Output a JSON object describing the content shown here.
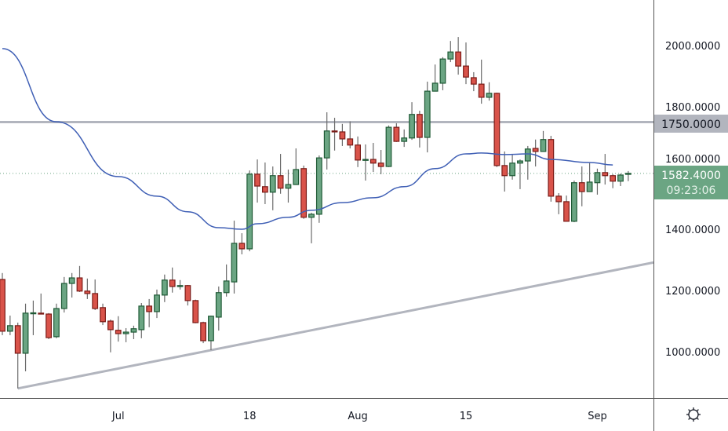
{
  "chart_data": {
    "type": "candlestick",
    "title": "",
    "xlabel": "",
    "ylabel": "",
    "ylim": [
      860,
      2150
    ],
    "grid": false,
    "y_ticks": [
      "1000.0000",
      "1200.0000",
      "1400.0000",
      "1600.0000",
      "1800.0000",
      "2000.0000"
    ],
    "x_ticks": [
      {
        "date": "Jul 1",
        "label": "Jul"
      },
      {
        "date": "Jul 18",
        "label": "18"
      },
      {
        "date": "Aug 1",
        "label": "Aug"
      },
      {
        "date": "Aug 15",
        "label": "15"
      },
      {
        "date": "Sep 1",
        "label": "Sep"
      }
    ],
    "ohlc_fields": [
      "date",
      "open",
      "high",
      "low",
      "close"
    ],
    "ohlc": [
      [
        "Jun 16",
        1236,
        1257,
        1054,
        1067
      ],
      [
        "Jun 17",
        1067,
        1118,
        1054,
        1085
      ],
      [
        "Jun 18",
        1085,
        1095,
        880,
        995
      ],
      [
        "Jun 19",
        995,
        1157,
        936,
        1126
      ],
      [
        "Jun 20",
        1126,
        1167,
        1054,
        1127
      ],
      [
        "Jun 21",
        1126,
        1190,
        1123,
        1123
      ],
      [
        "Jun 22",
        1123,
        1126,
        1041,
        1046
      ],
      [
        "Jun 23",
        1049,
        1157,
        1044,
        1141
      ],
      [
        "Jun 24",
        1141,
        1244,
        1128,
        1223
      ],
      [
        "Jun 25",
        1223,
        1257,
        1177,
        1241
      ],
      [
        "Jun 26",
        1241,
        1280,
        1195,
        1198
      ],
      [
        "Jun 27",
        1198,
        1239,
        1172,
        1190
      ],
      [
        "Jun 28",
        1190,
        1236,
        1136,
        1141
      ],
      [
        "Jun 29",
        1144,
        1157,
        1087,
        1098
      ],
      [
        "Jun 30",
        1100,
        1105,
        998,
        1072
      ],
      [
        "Jul 1",
        1070,
        1116,
        1033,
        1059
      ],
      [
        "Jul 2",
        1059,
        1077,
        1031,
        1064
      ],
      [
        "Jul 3",
        1064,
        1085,
        1041,
        1075
      ],
      [
        "Jul 4",
        1072,
        1159,
        1044,
        1149
      ],
      [
        "Jul 5",
        1149,
        1172,
        1080,
        1131
      ],
      [
        "Jul 6",
        1131,
        1203,
        1110,
        1185
      ],
      [
        "Jul 7",
        1185,
        1252,
        1162,
        1234
      ],
      [
        "Jul 8",
        1234,
        1275,
        1193,
        1213
      ],
      [
        "Jul 9",
        1213,
        1234,
        1203,
        1216
      ],
      [
        "Jul 10",
        1216,
        1218,
        1151,
        1167
      ],
      [
        "Jul 11",
        1167,
        1170,
        1093,
        1095
      ],
      [
        "Jul 12",
        1095,
        1098,
        1028,
        1036
      ],
      [
        "Jul 13",
        1036,
        1118,
        1005,
        1116
      ],
      [
        "Jul 14",
        1113,
        1213,
        1069,
        1193
      ],
      [
        "Jul 15",
        1193,
        1285,
        1180,
        1231
      ],
      [
        "Jul 16",
        1228,
        1428,
        1190,
        1354
      ],
      [
        "Jul 17",
        1354,
        1387,
        1318,
        1336
      ],
      [
        "Jul 18",
        1336,
        1592,
        1328,
        1580
      ],
      [
        "Jul 19",
        1580,
        1628,
        1487,
        1541
      ],
      [
        "Jul 20",
        1539,
        1618,
        1482,
        1521
      ],
      [
        "Jul 21",
        1521,
        1605,
        1462,
        1575
      ],
      [
        "Jul 22",
        1575,
        1646,
        1516,
        1534
      ],
      [
        "Jul 23",
        1534,
        1595,
        1487,
        1546
      ],
      [
        "Jul 24",
        1546,
        1664,
        1546,
        1595
      ],
      [
        "Jul 25",
        1598,
        1608,
        1434,
        1439
      ],
      [
        "Jul 26",
        1439,
        1454,
        1354,
        1449
      ],
      [
        "Jul 27",
        1449,
        1641,
        1421,
        1633
      ],
      [
        "Jul 28",
        1633,
        1782,
        1595,
        1721
      ],
      [
        "Jul 29",
        1721,
        1764,
        1657,
        1718
      ],
      [
        "Jul 30",
        1718,
        1744,
        1672,
        1695
      ],
      [
        "Jul 31",
        1695,
        1752,
        1664,
        1675
      ],
      [
        "Aug 1",
        1675,
        1703,
        1603,
        1626
      ],
      [
        "Aug 2",
        1626,
        1677,
        1559,
        1628
      ],
      [
        "Aug 3",
        1628,
        1682,
        1587,
        1616
      ],
      [
        "Aug 4",
        1616,
        1659,
        1580,
        1605
      ],
      [
        "Aug 5",
        1605,
        1739,
        1603,
        1733
      ],
      [
        "Aug 6",
        1733,
        1746,
        1685,
        1687
      ],
      [
        "Aug 7",
        1687,
        1726,
        1669,
        1698
      ],
      [
        "Aug 8",
        1698,
        1815,
        1692,
        1775
      ],
      [
        "Aug 9",
        1775,
        1787,
        1667,
        1700
      ],
      [
        "Aug 10",
        1700,
        1882,
        1651,
        1851
      ],
      [
        "Aug 11",
        1851,
        1938,
        1851,
        1877
      ],
      [
        "Aug 12",
        1877,
        1962,
        1854,
        1956
      ],
      [
        "Aug 13",
        1956,
        2015,
        1946,
        1979
      ],
      [
        "Aug 14",
        1979,
        2028,
        1905,
        1933
      ],
      [
        "Aug 15",
        1933,
        2010,
        1874,
        1897
      ],
      [
        "Aug 16",
        1895,
        1913,
        1851,
        1874
      ],
      [
        "Aug 17",
        1874,
        1954,
        1810,
        1831
      ],
      [
        "Aug 18",
        1831,
        1880,
        1820,
        1844
      ],
      [
        "Aug 19",
        1844,
        1846,
        1603,
        1608
      ],
      [
        "Aug 20",
        1608,
        1654,
        1523,
        1575
      ],
      [
        "Aug 21",
        1575,
        1644,
        1562,
        1616
      ],
      [
        "Aug 22",
        1616,
        1628,
        1531,
        1623
      ],
      [
        "Aug 23",
        1623,
        1672,
        1562,
        1662
      ],
      [
        "Aug 24",
        1664,
        1693,
        1605,
        1654
      ],
      [
        "Aug 25",
        1654,
        1721,
        1654,
        1693
      ],
      [
        "Aug 26",
        1693,
        1705,
        1490,
        1508
      ],
      [
        "Aug 27",
        1508,
        1518,
        1449,
        1490
      ],
      [
        "Aug 28",
        1490,
        1510,
        1426,
        1426
      ],
      [
        "Aug 29",
        1426,
        1559,
        1423,
        1552
      ],
      [
        "Aug 30",
        1552,
        1605,
        1475,
        1523
      ],
      [
        "Aug 31",
        1523,
        1616,
        1523,
        1554
      ],
      [
        "Sep 1",
        1552,
        1598,
        1513,
        1585
      ],
      [
        "Sep 2",
        1585,
        1646,
        1546,
        1575
      ],
      [
        "Sep 3",
        1575,
        1580,
        1534,
        1557
      ],
      [
        "Sep 4",
        1557,
        1582,
        1541,
        1577
      ],
      [
        "Sep 5",
        1580,
        1590,
        1557,
        1582.4
      ]
    ],
    "moving_average": {
      "color": "#3f5fb5",
      "points": [
        [
          "Jun 16",
          1990
        ],
        [
          "Jun 23",
          1751
        ],
        [
          "Jul 1",
          1572
        ],
        [
          "Jul 6",
          1508
        ],
        [
          "Jul 10",
          1457
        ],
        [
          "Jul 14",
          1405
        ],
        [
          "Jul 17",
          1400
        ],
        [
          "Jul 19",
          1418
        ],
        [
          "Jul 23",
          1439
        ],
        [
          "Jul 26",
          1462
        ],
        [
          "Jul 30",
          1487
        ],
        [
          "Aug 3",
          1503
        ],
        [
          "Aug 7",
          1539
        ],
        [
          "Aug 11",
          1598
        ],
        [
          "Aug 15",
          1646
        ],
        [
          "Aug 17",
          1649
        ],
        [
          "Aug 20",
          1644
        ],
        [
          "Aug 23",
          1646
        ],
        [
          "Aug 26",
          1628
        ],
        [
          "Aug 31",
          1618
        ],
        [
          "Sep 3",
          1610
        ]
      ]
    },
    "horizontal_line": {
      "price": 1750,
      "label": "1750.0000",
      "color": "#b2b5be"
    },
    "trend_line": {
      "points": [
        [
          "Jun 18",
          880
        ],
        [
          "Jul 13",
          1005
        ]
      ],
      "color": "#b2b5be"
    },
    "last_price": {
      "label": "1582.4000",
      "value": 1582.4,
      "countdown": "09:23:06",
      "color": "#6ba583"
    },
    "colors": {
      "up_body": "#6ba583",
      "up_border": "#1f5a36",
      "down_body": "#d9534a",
      "down_border": "#7a1c18",
      "wick": "#6b6b6b"
    }
  },
  "toolbar": {
    "settings_icon": "gear-icon"
  }
}
